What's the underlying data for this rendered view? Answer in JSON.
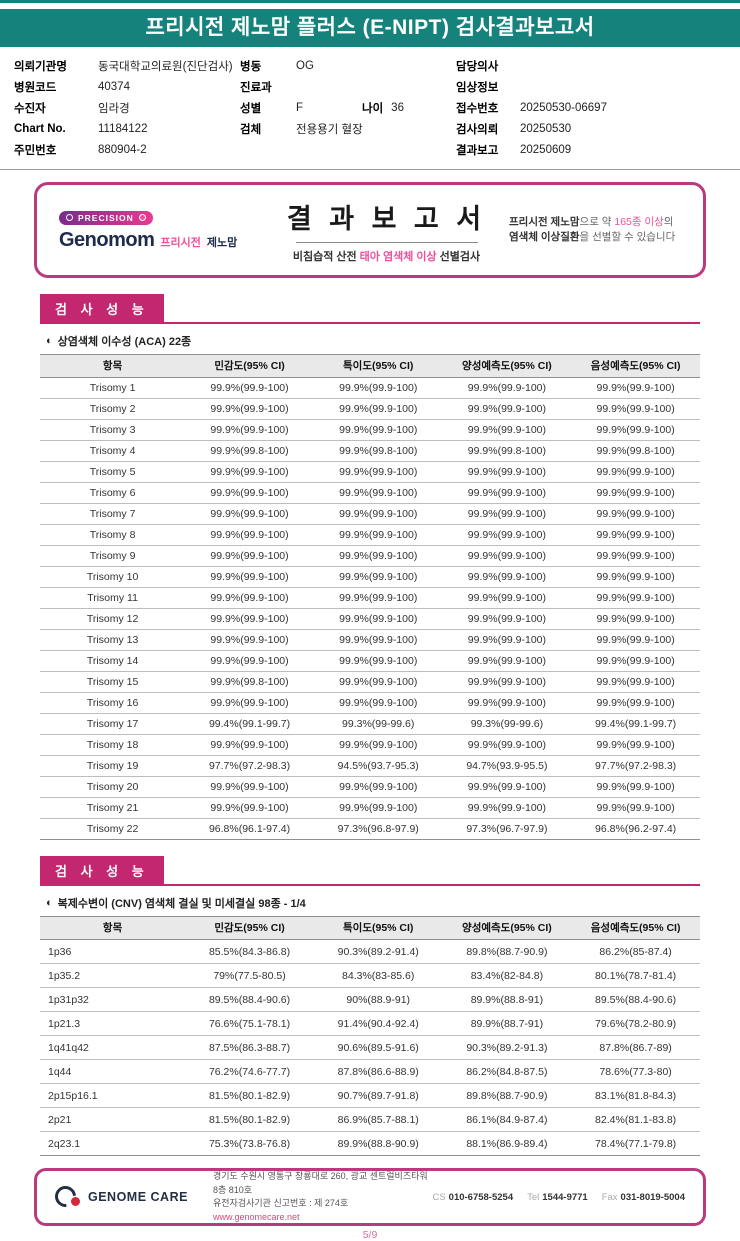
{
  "colors": {
    "teal": "#15837c",
    "magenta": "#c2276f",
    "pink_highlight": "#ef4f9b",
    "border_pink": "#b73b7e"
  },
  "header": {
    "title": "프리시전 제노맘 플러스 (E-NIPT) 검사결과보고서"
  },
  "patient": {
    "org_label": "의뢰기관명",
    "org_value": "동국대학교의료원(진단검사)",
    "hospital_code_label": "병원코드",
    "hospital_code_value": "40374",
    "patient_label": "수진자",
    "patient_value": "임라경",
    "chart_label": "Chart No.",
    "chart_value": "11184122",
    "resident_label": "주민번호",
    "resident_value": "880904-2",
    "ward_label": "병동",
    "ward_value": "OG",
    "dept_label": "진료과",
    "dept_value": "",
    "sex_label": "성별",
    "sex_value": "F",
    "age_label": "나이",
    "age_value": "36",
    "specimen_label": "검체",
    "specimen_value": "전용용기 혈장",
    "doctor_label": "담당의사",
    "doctor_value": "",
    "clinical_label": "임상정보",
    "clinical_value": "",
    "receipt_label": "접수번호",
    "receipt_value": "20250530-06697",
    "request_label": "검사의뢰",
    "request_value": "20250530",
    "report_label": "결과보고",
    "report_value": "20250609"
  },
  "report_box": {
    "precision_badge": "PRECISION",
    "brand": "Genomom",
    "brand_sub_pink": "프리시전",
    "brand_sub_dark": "제노맘",
    "title": "결 과 보 고 서",
    "subtitle_prefix": "비침습적 산전 ",
    "subtitle_highlight": "태아 염색체 이상",
    "subtitle_suffix": " 선별검사",
    "note_bold1": "프리시전 제노맘",
    "note_text1": "으로 약 ",
    "note_highlight": "165종 이상",
    "note_text2": "의 ",
    "note_bold2": "염색체 이상질환",
    "note_text3": "을 선별할 수 있습니다"
  },
  "aca_section": {
    "chip": "검 사 성 능",
    "icon": "◐",
    "subtitle": "상염색체 이수성 (ACA) 22종",
    "headers": [
      "항목",
      "민감도(95% CI)",
      "특이도(95% CI)",
      "양성예측도(95% CI)",
      "음성예측도(95% CI)"
    ],
    "rows": [
      {
        "item": "Trisomy 1",
        "sensitivity": "99.9%(99.9-100)",
        "specificity": "99.9%(99.9-100)",
        "ppv": "99.9%(99.9-100)",
        "npv": "99.9%(99.9-100)"
      },
      {
        "item": "Trisomy 2",
        "sensitivity": "99.9%(99.9-100)",
        "specificity": "99.9%(99.9-100)",
        "ppv": "99.9%(99.9-100)",
        "npv": "99.9%(99.9-100)"
      },
      {
        "item": "Trisomy 3",
        "sensitivity": "99.9%(99.9-100)",
        "specificity": "99.9%(99.9-100)",
        "ppv": "99.9%(99.9-100)",
        "npv": "99.9%(99.9-100)"
      },
      {
        "item": "Trisomy 4",
        "sensitivity": "99.9%(99.8-100)",
        "specificity": "99.9%(99.8-100)",
        "ppv": "99.9%(99.8-100)",
        "npv": "99.9%(99.8-100)"
      },
      {
        "item": "Trisomy 5",
        "sensitivity": "99.9%(99.9-100)",
        "specificity": "99.9%(99.9-100)",
        "ppv": "99.9%(99.9-100)",
        "npv": "99.9%(99.9-100)"
      },
      {
        "item": "Trisomy 6",
        "sensitivity": "99.9%(99.9-100)",
        "specificity": "99.9%(99.9-100)",
        "ppv": "99.9%(99.9-100)",
        "npv": "99.9%(99.9-100)"
      },
      {
        "item": "Trisomy 7",
        "sensitivity": "99.9%(99.9-100)",
        "specificity": "99.9%(99.9-100)",
        "ppv": "99.9%(99.9-100)",
        "npv": "99.9%(99.9-100)"
      },
      {
        "item": "Trisomy 8",
        "sensitivity": "99.9%(99.9-100)",
        "specificity": "99.9%(99.9-100)",
        "ppv": "99.9%(99.9-100)",
        "npv": "99.9%(99.9-100)"
      },
      {
        "item": "Trisomy 9",
        "sensitivity": "99.9%(99.9-100)",
        "specificity": "99.9%(99.9-100)",
        "ppv": "99.9%(99.9-100)",
        "npv": "99.9%(99.9-100)"
      },
      {
        "item": "Trisomy 10",
        "sensitivity": "99.9%(99.9-100)",
        "specificity": "99.9%(99.9-100)",
        "ppv": "99.9%(99.9-100)",
        "npv": "99.9%(99.9-100)"
      },
      {
        "item": "Trisomy 11",
        "sensitivity": "99.9%(99.9-100)",
        "specificity": "99.9%(99.9-100)",
        "ppv": "99.9%(99.9-100)",
        "npv": "99.9%(99.9-100)"
      },
      {
        "item": "Trisomy 12",
        "sensitivity": "99.9%(99.9-100)",
        "specificity": "99.9%(99.9-100)",
        "ppv": "99.9%(99.9-100)",
        "npv": "99.9%(99.9-100)"
      },
      {
        "item": "Trisomy 13",
        "sensitivity": "99.9%(99.9-100)",
        "specificity": "99.9%(99.9-100)",
        "ppv": "99.9%(99.9-100)",
        "npv": "99.9%(99.9-100)"
      },
      {
        "item": "Trisomy 14",
        "sensitivity": "99.9%(99.9-100)",
        "specificity": "99.9%(99.9-100)",
        "ppv": "99.9%(99.9-100)",
        "npv": "99.9%(99.9-100)"
      },
      {
        "item": "Trisomy 15",
        "sensitivity": "99.9%(99.8-100)",
        "specificity": "99.9%(99.9-100)",
        "ppv": "99.9%(99.9-100)",
        "npv": "99.9%(99.9-100)"
      },
      {
        "item": "Trisomy 16",
        "sensitivity": "99.9%(99.9-100)",
        "specificity": "99.9%(99.9-100)",
        "ppv": "99.9%(99.9-100)",
        "npv": "99.9%(99.9-100)"
      },
      {
        "item": "Trisomy 17",
        "sensitivity": "99.4%(99.1-99.7)",
        "specificity": "99.3%(99-99.6)",
        "ppv": "99.3%(99-99.6)",
        "npv": "99.4%(99.1-99.7)"
      },
      {
        "item": "Trisomy 18",
        "sensitivity": "99.9%(99.9-100)",
        "specificity": "99.9%(99.9-100)",
        "ppv": "99.9%(99.9-100)",
        "npv": "99.9%(99.9-100)"
      },
      {
        "item": "Trisomy 19",
        "sensitivity": "97.7%(97.2-98.3)",
        "specificity": "94.5%(93.7-95.3)",
        "ppv": "94.7%(93.9-95.5)",
        "npv": "97.7%(97.2-98.3)"
      },
      {
        "item": "Trisomy 20",
        "sensitivity": "99.9%(99.9-100)",
        "specificity": "99.9%(99.9-100)",
        "ppv": "99.9%(99.9-100)",
        "npv": "99.9%(99.9-100)"
      },
      {
        "item": "Trisomy 21",
        "sensitivity": "99.9%(99.9-100)",
        "specificity": "99.9%(99.9-100)",
        "ppv": "99.9%(99.9-100)",
        "npv": "99.9%(99.9-100)"
      },
      {
        "item": "Trisomy 22",
        "sensitivity": "96.8%(96.1-97.4)",
        "specificity": "97.3%(96.8-97.9)",
        "ppv": "97.3%(96.7-97.9)",
        "npv": "96.8%(96.2-97.4)"
      }
    ]
  },
  "cnv_section": {
    "chip": "검 사 성 능",
    "icon": "◐",
    "subtitle": "복제수변이 (CNV) 염색체 결실 및 미세결실 98종 - 1/4",
    "headers": [
      "항목",
      "민감도(95% CI)",
      "특이도(95% CI)",
      "양성예측도(95% CI)",
      "음성예측도(95% CI)"
    ],
    "rows": [
      {
        "item": "1p36",
        "sensitivity": "85.5%(84.3-86.8)",
        "specificity": "90.3%(89.2-91.4)",
        "ppv": "89.8%(88.7-90.9)",
        "npv": "86.2%(85-87.4)"
      },
      {
        "item": "1p35.2",
        "sensitivity": "79%(77.5-80.5)",
        "specificity": "84.3%(83-85.6)",
        "ppv": "83.4%(82-84.8)",
        "npv": "80.1%(78.7-81.4)"
      },
      {
        "item": "1p31p32",
        "sensitivity": "89.5%(88.4-90.6)",
        "specificity": "90%(88.9-91)",
        "ppv": "89.9%(88.8-91)",
        "npv": "89.5%(88.4-90.6)"
      },
      {
        "item": "1p21.3",
        "sensitivity": "76.6%(75.1-78.1)",
        "specificity": "91.4%(90.4-92.4)",
        "ppv": "89.9%(88.7-91)",
        "npv": "79.6%(78.2-80.9)"
      },
      {
        "item": "1q41q42",
        "sensitivity": "87.5%(86.3-88.7)",
        "specificity": "90.6%(89.5-91.6)",
        "ppv": "90.3%(89.2-91.3)",
        "npv": "87.8%(86.7-89)"
      },
      {
        "item": "1q44",
        "sensitivity": "76.2%(74.6-77.7)",
        "specificity": "87.8%(86.6-88.9)",
        "ppv": "86.2%(84.8-87.5)",
        "npv": "78.6%(77.3-80)"
      },
      {
        "item": "2p15p16.1",
        "sensitivity": "81.5%(80.1-82.9)",
        "specificity": "90.7%(89.7-91.8)",
        "ppv": "89.8%(88.7-90.9)",
        "npv": "83.1%(81.8-84.3)"
      },
      {
        "item": "2p21",
        "sensitivity": "81.5%(80.1-82.9)",
        "specificity": "86.9%(85.7-88.1)",
        "ppv": "86.1%(84.9-87.4)",
        "npv": "82.4%(81.1-83.8)"
      },
      {
        "item": "2q23.1",
        "sensitivity": "75.3%(73.8-76.8)",
        "specificity": "89.9%(88.8-90.9)",
        "ppv": "88.1%(86.9-89.4)",
        "npv": "78.4%(77.1-79.8)"
      }
    ]
  },
  "footer": {
    "brand": "GENOME CARE",
    "address_line1": "경기도 수원시 영통구 창룡대로 260, 광교 센트럴비즈타워 8층 810호",
    "address_line2": "유전자검사기관 신고번호 : 제 274호",
    "website": "www.genomecare.net",
    "cs_label": "CS",
    "cs_number": "010-6758-5254",
    "tel_label": "Tel",
    "tel_number": "1544-9771",
    "fax_label": "Fax",
    "fax_number": "031-8019-5004",
    "page_number": "5/9"
  }
}
